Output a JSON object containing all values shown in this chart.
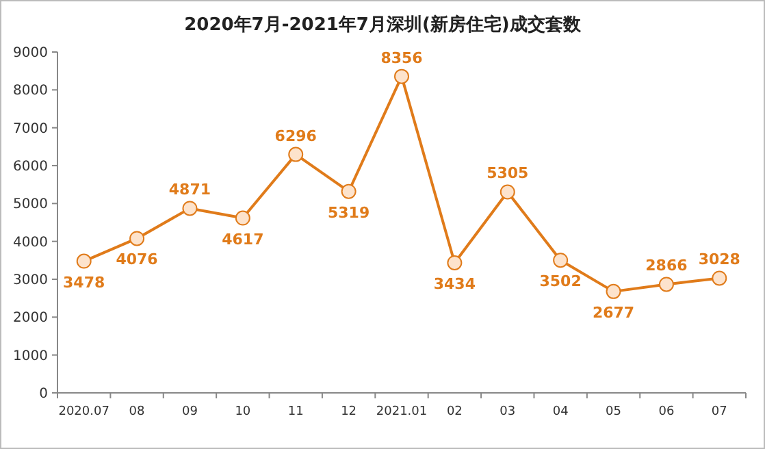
{
  "chart_data": {
    "type": "line",
    "title": "2020年7月-2021年7月深圳(新房住宅)成交套数",
    "categories": [
      "2020.07",
      "08",
      "09",
      "10",
      "11",
      "12",
      "2021.01",
      "02",
      "03",
      "04",
      "05",
      "06",
      "07"
    ],
    "values": [
      3478,
      4076,
      4871,
      4617,
      6296,
      5319,
      8356,
      3434,
      5305,
      3502,
      2677,
      2866,
      3028
    ],
    "color": "#e07b1a",
    "marker": "circle",
    "data_labels": true,
    "ylim": [
      0,
      9000
    ],
    "yticks": [
      0,
      1000,
      2000,
      3000,
      4000,
      5000,
      6000,
      7000,
      8000,
      9000
    ]
  }
}
